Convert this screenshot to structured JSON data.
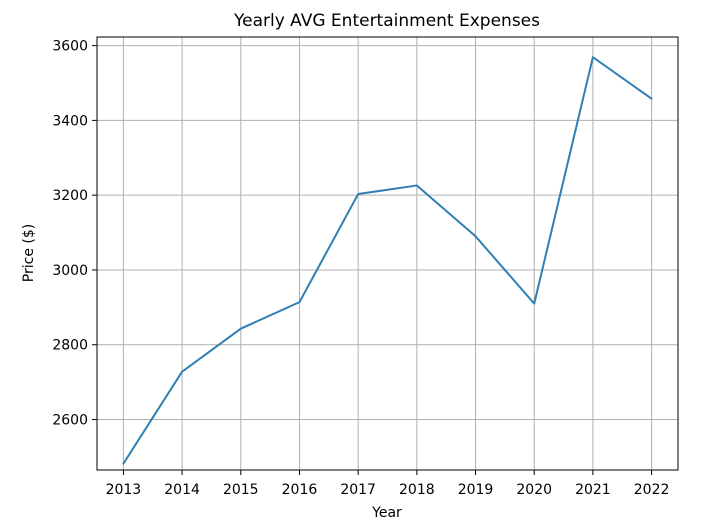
{
  "chart_data": {
    "type": "line",
    "title": "Yearly AVG Entertainment Expenses",
    "xlabel": "Year",
    "ylabel": "Price ($)",
    "x": [
      2013,
      2014,
      2015,
      2016,
      2017,
      2018,
      2019,
      2020,
      2021,
      2022
    ],
    "series": [
      {
        "values": [
          2482,
          2728,
          2843,
          2914,
          3203,
          3226,
          3090,
          2910,
          3569,
          3458
        ],
        "color": "#2f7fb5"
      }
    ],
    "xlim": [
      2012.55,
      2022.45
    ],
    "ylim": [
      2465,
      3623
    ],
    "yticks": [
      2600,
      2800,
      3000,
      3200,
      3400,
      3600
    ],
    "xticks": [
      2013,
      2014,
      2015,
      2016,
      2017,
      2018,
      2019,
      2020,
      2021,
      2022
    ],
    "grid": true,
    "legend": "none"
  }
}
